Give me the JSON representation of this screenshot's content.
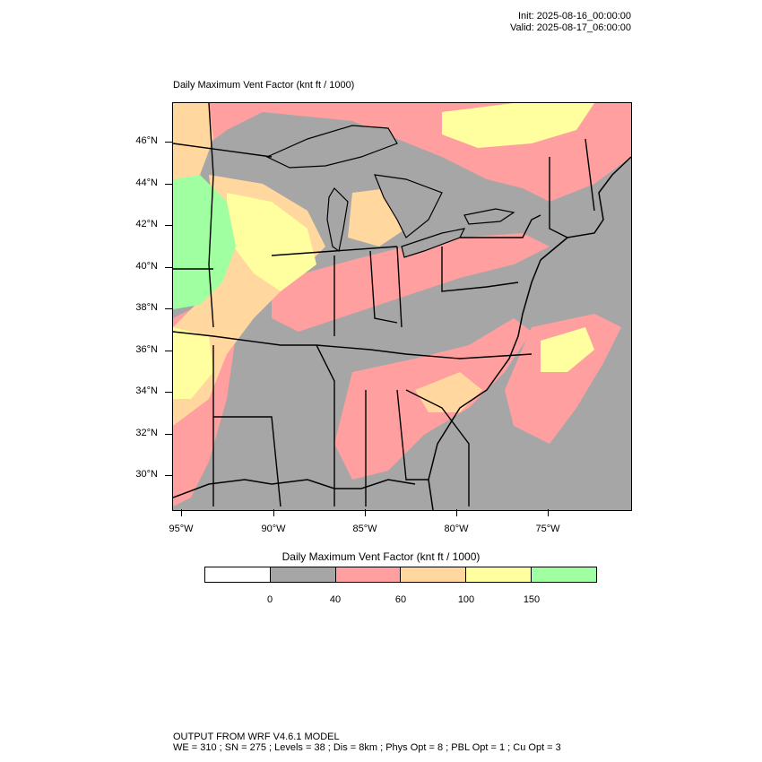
{
  "header": {
    "init": "Init: 2025-08-16_00:00:00",
    "valid": "Valid: 2025-08-17_06:00:00"
  },
  "map": {
    "title": "Daily Maximum Vent Factor   (knt ft / 1000)",
    "lat_labels": [
      "46°N",
      "44°N",
      "42°N",
      "40°N",
      "38°N",
      "36°N",
      "34°N",
      "32°N",
      "30°N"
    ],
    "lon_labels": [
      "95°W",
      "90°W",
      "85°W",
      "80°W",
      "75°W"
    ]
  },
  "colorbar": {
    "title": "Daily Maximum Vent Factor  (knt ft / 1000)",
    "colors": [
      "#ffffff",
      "#a6a6a6",
      "#ff9f9f",
      "#ffd79f",
      "#ffff9f",
      "#a0ffa0"
    ],
    "labels": [
      "0",
      "40",
      "60",
      "100",
      "150"
    ]
  },
  "footer": {
    "line1": "OUTPUT FROM WRF V4.6.1 MODEL",
    "line2": "WE = 310 ; SN = 275 ; Levels = 38 ; Dis = 8km ; Phys Opt = 8 ; PBL Opt = 1 ; Cu Opt = 3"
  }
}
